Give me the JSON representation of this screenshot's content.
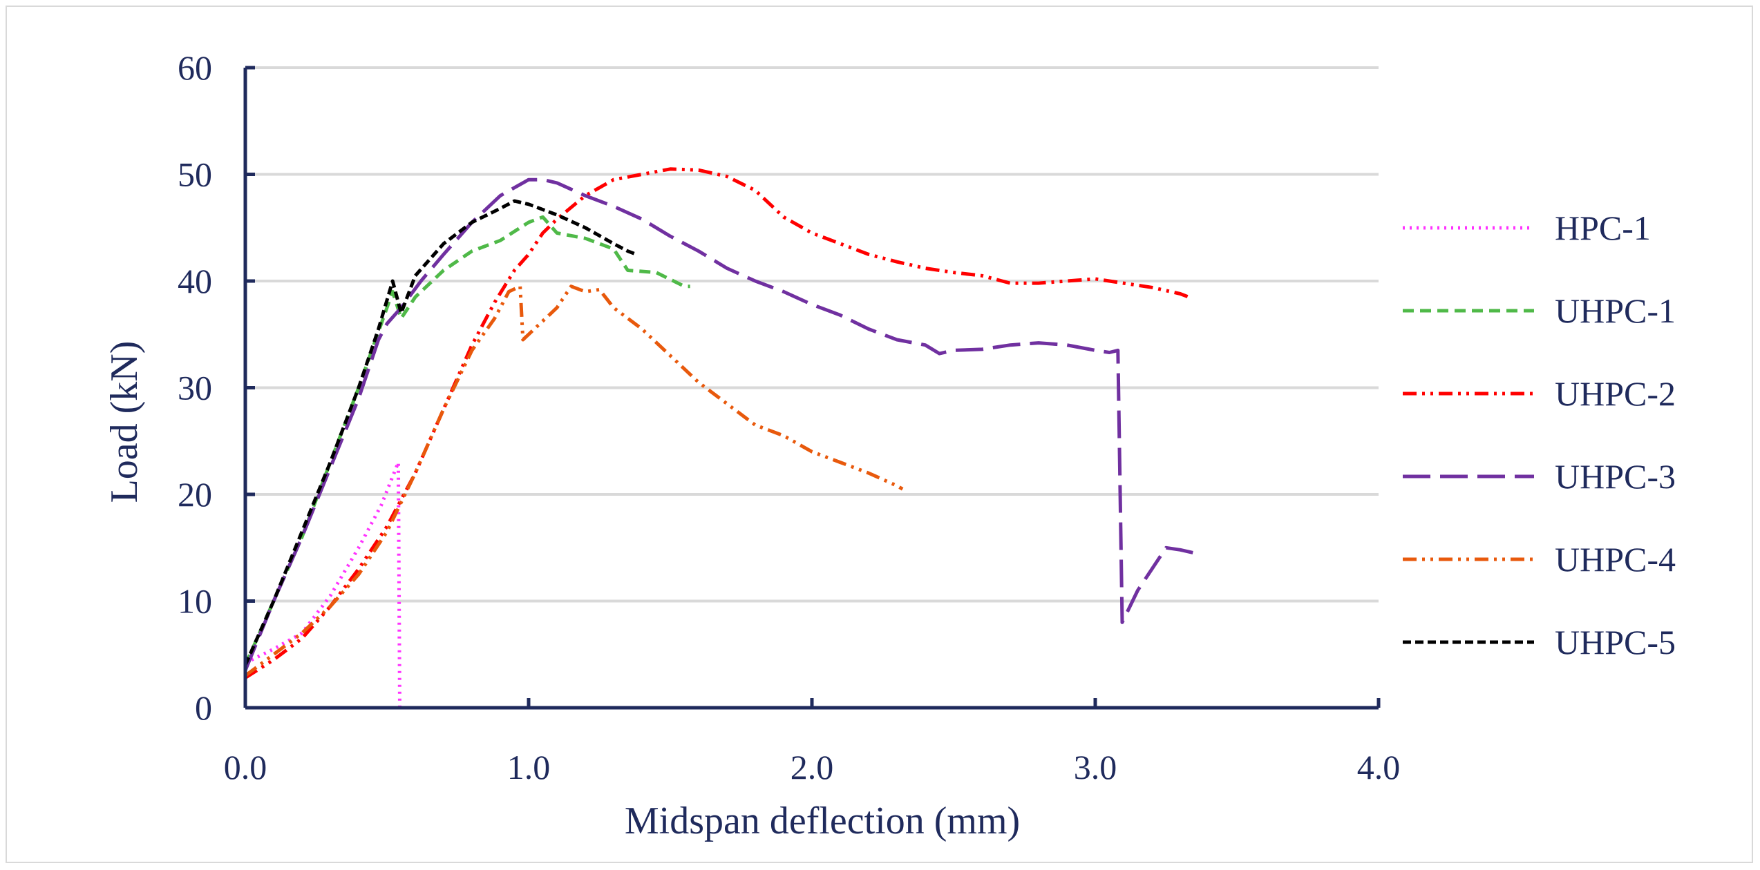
{
  "chart_data": {
    "type": "line",
    "title": "",
    "xlabel": "Midspan deflection (mm)",
    "ylabel": "Load (kN)",
    "xlim": [
      0,
      4.0
    ],
    "ylim": [
      0,
      60
    ],
    "x_ticks": [
      "0.0",
      "1.0",
      "2.0",
      "3.0",
      "4.0"
    ],
    "y_ticks": [
      "0",
      "10",
      "20",
      "30",
      "40",
      "50",
      "60"
    ],
    "grid": "horizontal",
    "legend_position": "right",
    "colors": {
      "axis": "#1f2a5c",
      "grid": "#d9d9d9"
    },
    "series": [
      {
        "name": "HPC-1",
        "color": "#ff33ff",
        "dash": "dotted",
        "points": [
          [
            0.0,
            4.2
          ],
          [
            0.1,
            5.5
          ],
          [
            0.2,
            7.0
          ],
          [
            0.3,
            10.5
          ],
          [
            0.4,
            15.0
          ],
          [
            0.48,
            19.0
          ],
          [
            0.54,
            23.0
          ],
          [
            0.545,
            0.0
          ]
        ]
      },
      {
        "name": "UHPC-1",
        "color": "#4fb948",
        "dash": "dashed",
        "points": [
          [
            0.0,
            4.0
          ],
          [
            0.1,
            10.0
          ],
          [
            0.2,
            16.0
          ],
          [
            0.3,
            23.0
          ],
          [
            0.4,
            30.0
          ],
          [
            0.48,
            36.0
          ],
          [
            0.52,
            39.0
          ],
          [
            0.55,
            36.5
          ],
          [
            0.6,
            38.5
          ],
          [
            0.7,
            41.0
          ],
          [
            0.8,
            42.8
          ],
          [
            0.9,
            43.8
          ],
          [
            1.0,
            45.5
          ],
          [
            1.05,
            46.0
          ],
          [
            1.1,
            44.5
          ],
          [
            1.2,
            44.0
          ],
          [
            1.3,
            43.0
          ],
          [
            1.35,
            41.0
          ],
          [
            1.45,
            40.8
          ],
          [
            1.55,
            39.5
          ],
          [
            1.57,
            39.5
          ]
        ]
      },
      {
        "name": "UHPC-2",
        "color": "#ff0000",
        "dash": "dashdotdot",
        "points": [
          [
            0.0,
            2.8
          ],
          [
            0.1,
            4.5
          ],
          [
            0.2,
            6.5
          ],
          [
            0.3,
            9.5
          ],
          [
            0.4,
            13.0
          ],
          [
            0.5,
            17.0
          ],
          [
            0.6,
            22.0
          ],
          [
            0.7,
            28.0
          ],
          [
            0.8,
            34.0
          ],
          [
            0.88,
            38.0
          ],
          [
            0.95,
            41.0
          ],
          [
            1.0,
            42.5
          ],
          [
            1.05,
            44.5
          ],
          [
            1.1,
            45.8
          ],
          [
            1.2,
            48.0
          ],
          [
            1.3,
            49.5
          ],
          [
            1.4,
            50.0
          ],
          [
            1.5,
            50.5
          ],
          [
            1.6,
            50.4
          ],
          [
            1.7,
            49.8
          ],
          [
            1.8,
            48.5
          ],
          [
            1.9,
            46.0
          ],
          [
            2.0,
            44.5
          ],
          [
            2.1,
            43.5
          ],
          [
            2.2,
            42.5
          ],
          [
            2.3,
            41.8
          ],
          [
            2.4,
            41.2
          ],
          [
            2.5,
            40.8
          ],
          [
            2.6,
            40.5
          ],
          [
            2.7,
            39.8
          ],
          [
            2.8,
            39.8
          ],
          [
            2.9,
            40.0
          ],
          [
            3.0,
            40.2
          ],
          [
            3.1,
            39.8
          ],
          [
            3.2,
            39.4
          ],
          [
            3.3,
            38.8
          ],
          [
            3.33,
            38.5
          ]
        ]
      },
      {
        "name": "UHPC-3",
        "color": "#7030a0",
        "dash": "longdash",
        "points": [
          [
            0.0,
            3.5
          ],
          [
            0.1,
            10.0
          ],
          [
            0.2,
            16.0
          ],
          [
            0.3,
            22.5
          ],
          [
            0.4,
            29.0
          ],
          [
            0.47,
            34.5
          ],
          [
            0.5,
            36.0
          ],
          [
            0.55,
            37.5
          ],
          [
            0.62,
            40.0
          ],
          [
            0.7,
            42.5
          ],
          [
            0.8,
            45.5
          ],
          [
            0.9,
            48.0
          ],
          [
            1.0,
            49.5
          ],
          [
            1.05,
            49.5
          ],
          [
            1.1,
            49.2
          ],
          [
            1.2,
            48.0
          ],
          [
            1.3,
            47.0
          ],
          [
            1.4,
            45.8
          ],
          [
            1.5,
            44.2
          ],
          [
            1.6,
            42.8
          ],
          [
            1.7,
            41.2
          ],
          [
            1.8,
            40.0
          ],
          [
            1.9,
            39.0
          ],
          [
            2.0,
            37.8
          ],
          [
            2.1,
            36.8
          ],
          [
            2.2,
            35.5
          ],
          [
            2.3,
            34.5
          ],
          [
            2.4,
            34.0
          ],
          [
            2.45,
            33.2
          ],
          [
            2.5,
            33.5
          ],
          [
            2.6,
            33.6
          ],
          [
            2.7,
            34.0
          ],
          [
            2.8,
            34.2
          ],
          [
            2.9,
            34.0
          ],
          [
            3.0,
            33.5
          ],
          [
            3.05,
            33.3
          ],
          [
            3.08,
            33.5
          ],
          [
            3.095,
            8.0
          ],
          [
            3.15,
            11.0
          ],
          [
            3.2,
            13.0
          ],
          [
            3.25,
            15.0
          ],
          [
            3.3,
            14.8
          ],
          [
            3.35,
            14.5
          ]
        ]
      },
      {
        "name": "UHPC-4",
        "color": "#e8590c",
        "dash": "dashdotdot",
        "points": [
          [
            0.0,
            3.0
          ],
          [
            0.1,
            5.0
          ],
          [
            0.2,
            7.0
          ],
          [
            0.3,
            9.5
          ],
          [
            0.4,
            12.5
          ],
          [
            0.5,
            16.5
          ],
          [
            0.6,
            22.0
          ],
          [
            0.7,
            28.0
          ],
          [
            0.8,
            33.5
          ],
          [
            0.88,
            36.5
          ],
          [
            0.93,
            39.0
          ],
          [
            0.97,
            39.5
          ],
          [
            0.98,
            34.5
          ],
          [
            1.0,
            35.0
          ],
          [
            1.1,
            37.5
          ],
          [
            1.15,
            39.5
          ],
          [
            1.2,
            39.0
          ],
          [
            1.25,
            39.2
          ],
          [
            1.3,
            37.5
          ],
          [
            1.4,
            35.5
          ],
          [
            1.5,
            33.0
          ],
          [
            1.6,
            30.5
          ],
          [
            1.7,
            28.5
          ],
          [
            1.8,
            26.5
          ],
          [
            1.9,
            25.5
          ],
          [
            2.0,
            24.0
          ],
          [
            2.1,
            23.0
          ],
          [
            2.2,
            22.0
          ],
          [
            2.3,
            20.8
          ],
          [
            2.32,
            20.5
          ]
        ]
      },
      {
        "name": "UHPC-5",
        "color": "#000000",
        "dash": "shortdash",
        "points": [
          [
            0.0,
            4.0
          ],
          [
            0.1,
            10.0
          ],
          [
            0.2,
            16.5
          ],
          [
            0.3,
            23.0
          ],
          [
            0.4,
            30.0
          ],
          [
            0.47,
            35.5
          ],
          [
            0.52,
            40.0
          ],
          [
            0.55,
            37.0
          ],
          [
            0.6,
            40.5
          ],
          [
            0.7,
            43.5
          ],
          [
            0.8,
            45.5
          ],
          [
            0.9,
            46.8
          ],
          [
            0.95,
            47.5
          ],
          [
            1.0,
            47.2
          ],
          [
            1.1,
            46.2
          ],
          [
            1.2,
            45.0
          ],
          [
            1.3,
            43.5
          ],
          [
            1.35,
            42.8
          ],
          [
            1.38,
            42.5
          ]
        ]
      }
    ]
  }
}
